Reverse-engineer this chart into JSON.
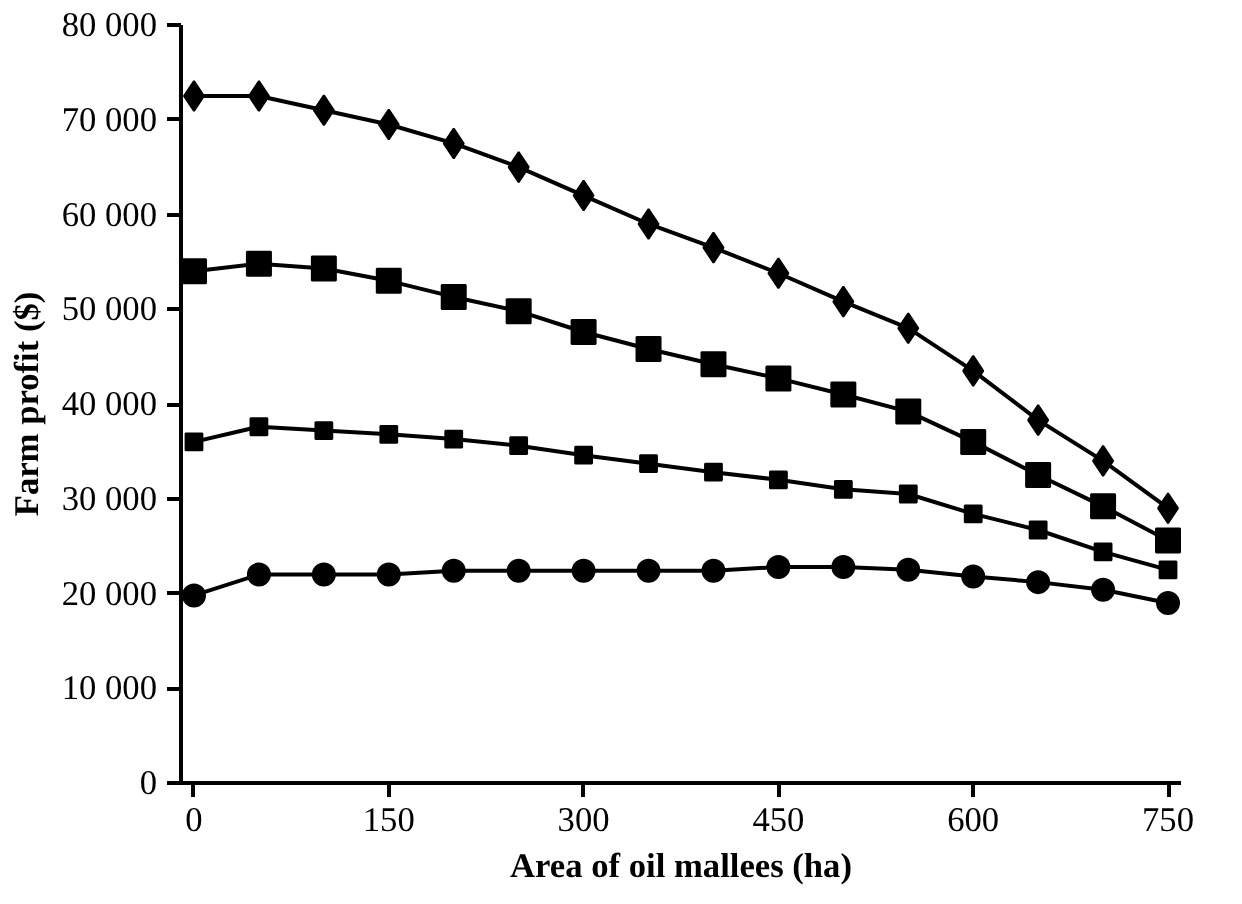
{
  "chart_data": {
    "type": "line",
    "xlabel": "Area of oil mallees (ha)",
    "ylabel": "Farm profit ($)",
    "x": [
      0,
      50,
      100,
      150,
      200,
      250,
      300,
      350,
      400,
      450,
      500,
      550,
      600,
      650,
      700,
      750
    ],
    "xlim": [
      -10,
      760
    ],
    "xticks": [
      0,
      150,
      300,
      450,
      600,
      750
    ],
    "ylim": [
      0,
      80000
    ],
    "yticks": [
      0,
      {
        "value": 10000,
        "label": "10 000"
      },
      {
        "value": 20000,
        "label": "20 000"
      },
      {
        "value": 30000,
        "label": "30 000"
      },
      {
        "value": 40000,
        "label": "40 000"
      },
      {
        "value": 50000,
        "label": "50 000"
      },
      {
        "value": 60000,
        "label": "60 000"
      },
      {
        "value": 70000,
        "label": "70 000"
      },
      {
        "value": 80000,
        "label": "80 000"
      }
    ],
    "grid": false,
    "line_style": "solid",
    "series": [
      {
        "color": "#000000",
        "marker": "diamond",
        "values": [
          72500,
          72500,
          71000,
          69500,
          67500,
          65000,
          62000,
          59000,
          56500,
          53800,
          50800,
          48000,
          43500,
          38300,
          34000,
          29000
        ]
      },
      {
        "color": "#000000",
        "marker": "square",
        "values": [
          54000,
          54800,
          54300,
          53000,
          51300,
          49800,
          47600,
          45800,
          44200,
          42700,
          41000,
          39200,
          36000,
          32500,
          29200,
          25600
        ]
      },
      {
        "color": "#000000",
        "marker": "square",
        "values": [
          36000,
          37600,
          37200,
          36800,
          36300,
          35600,
          34600,
          33700,
          32800,
          32000,
          31000,
          30500,
          28400,
          26700,
          24400,
          22500
        ]
      },
      {
        "color": "#000000",
        "marker": "circle",
        "values": [
          19800,
          22000,
          22000,
          22000,
          22400,
          22400,
          22400,
          22400,
          22400,
          22800,
          22800,
          22500,
          21800,
          21200,
          20400,
          19000
        ]
      }
    ]
  }
}
